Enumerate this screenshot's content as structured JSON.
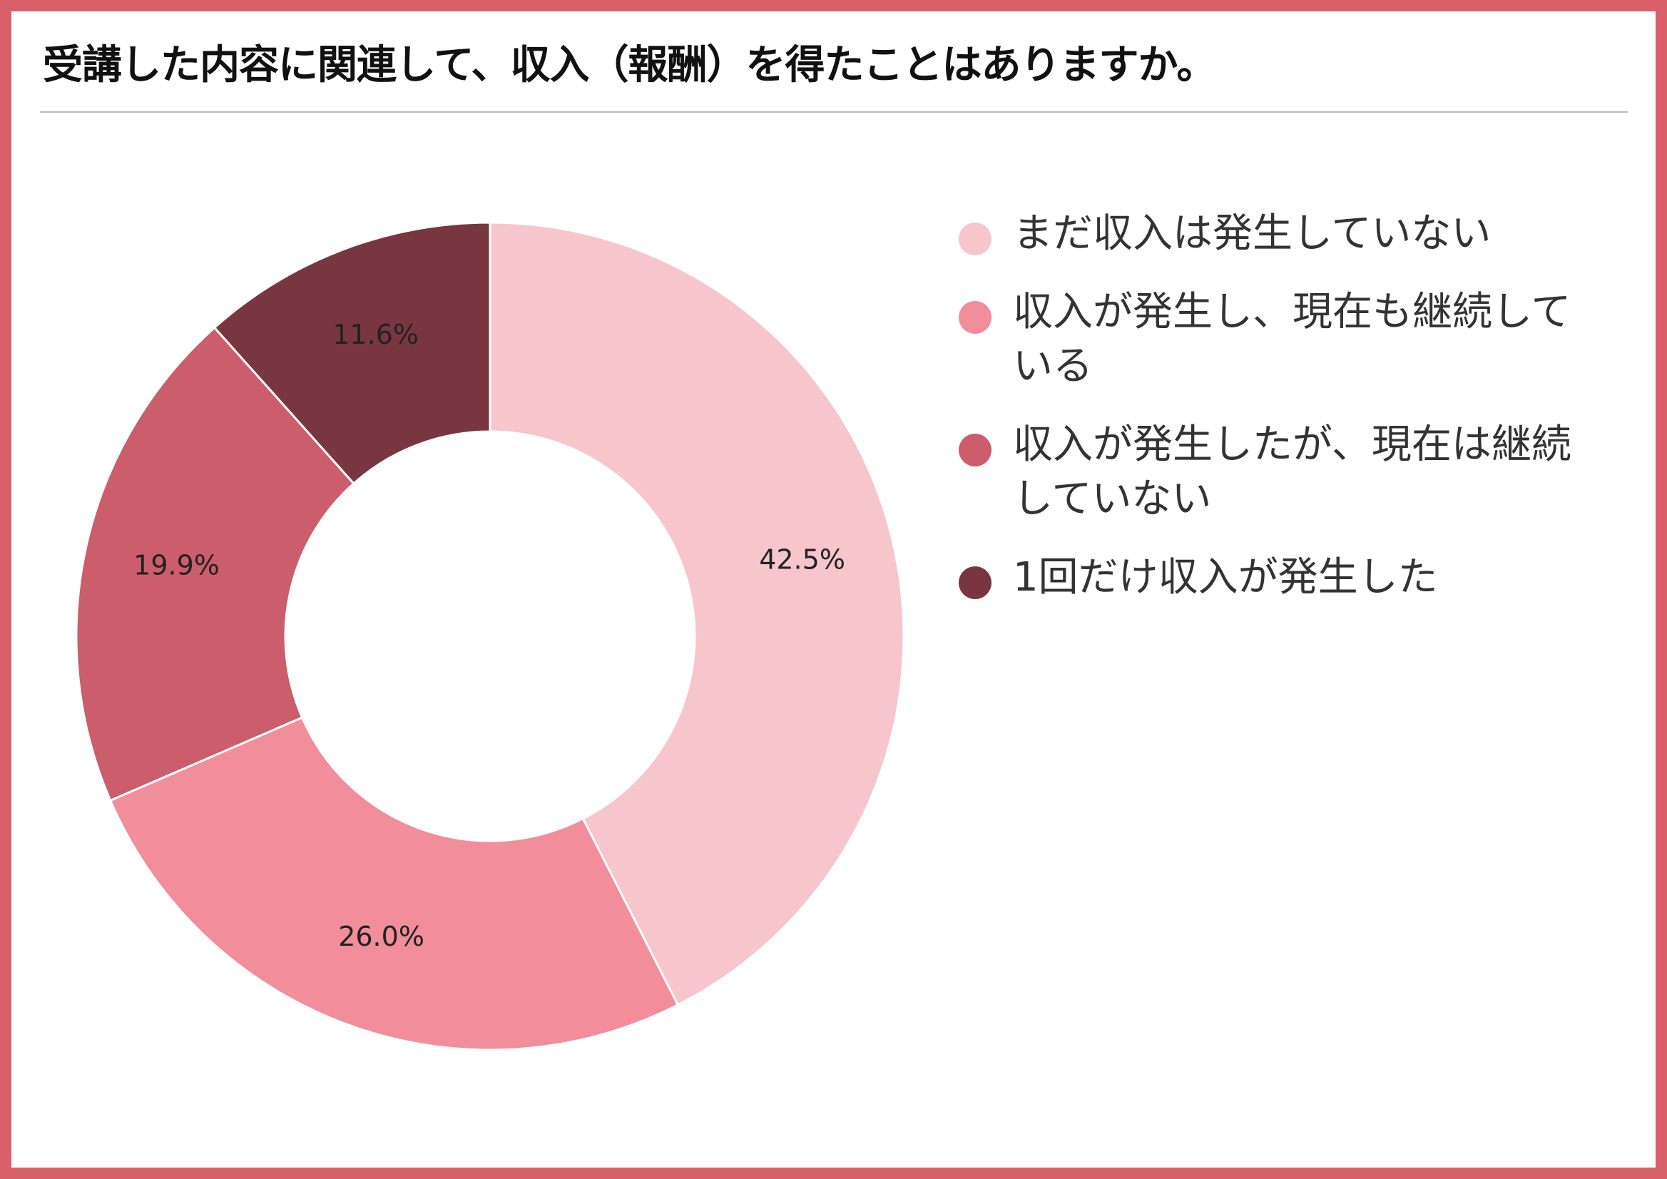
{
  "title": "受講した内容に関連して、収入（報酬）を得たことはありますか。",
  "chart_data": {
    "type": "pie",
    "donut": true,
    "title": "受講した内容に関連して、収入（報酬）を得たことはありますか。",
    "legend_position": "right",
    "slices": [
      {
        "label": "まだ収入は発生していない",
        "value": 42.5,
        "display": "42.5%",
        "color": "#f7c6cd"
      },
      {
        "label": "収入が発生し、現在も継続している",
        "value": 26.0,
        "display": "26.0%",
        "color": "#f28d9b"
      },
      {
        "label": "収入が発生したが、現在は継続していない",
        "value": 19.9,
        "display": "19.9%",
        "color": "#cc5d6d"
      },
      {
        "label": "1回だけ収入が発生した",
        "value": 11.6,
        "display": "11.6%",
        "color": "#7a3640"
      }
    ]
  },
  "frame_color": "#d95f69"
}
